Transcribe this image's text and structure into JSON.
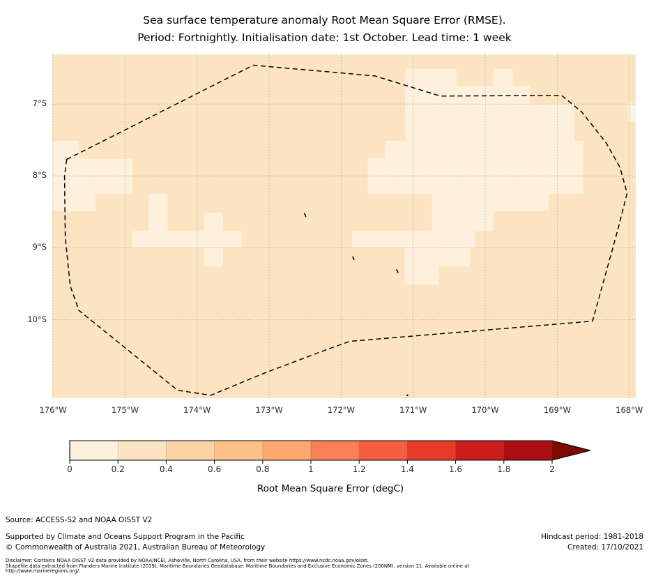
{
  "title": {
    "line1": "Sea surface temperature anomaly Root Mean Square Error (RMSE).",
    "line2": "Period: Fortnightly. Initialisation date: 1st October. Lead time: 1 week"
  },
  "chart_data": {
    "type": "heatmap",
    "subtype": "geographic-map",
    "grid": true,
    "lon_left_w": 176.01,
    "lon_right_w": 167.91,
    "lat_top_s": 6.31,
    "lat_bottom_s": 11.09,
    "x_axis": {
      "ticks": [
        {
          "value": 176,
          "label": "176°W"
        },
        {
          "value": 175,
          "label": "175°W"
        },
        {
          "value": 174,
          "label": "174°W"
        },
        {
          "value": 173,
          "label": "173°W"
        },
        {
          "value": 172,
          "label": "172°W"
        },
        {
          "value": 171,
          "label": "171°W"
        },
        {
          "value": 170,
          "label": "170°W"
        },
        {
          "value": 169,
          "label": "169°W"
        },
        {
          "value": 168,
          "label": "168°W"
        }
      ]
    },
    "y_axis": {
      "ticks": [
        {
          "value": 7,
          "label": "7°S"
        },
        {
          "value": 8,
          "label": "8°S"
        },
        {
          "value": 9,
          "label": "9°S"
        },
        {
          "value": 10,
          "label": "10°S"
        }
      ]
    },
    "background_color": "#fce4c3",
    "light_color": "#fdf1dd",
    "background_bin_degC": "0.2-0.4",
    "light_bin_degC": "0-0.2",
    "low_rmse_patches": [
      {
        "w": 176.03,
        "e": 175.64,
        "n": 7.51,
        "s": 7.76
      },
      {
        "w": 176.03,
        "e": 174.9,
        "n": 7.76,
        "s": 8.25
      },
      {
        "w": 176.03,
        "e": 175.41,
        "n": 8.25,
        "s": 8.49
      },
      {
        "w": 174.67,
        "e": 174.41,
        "n": 8.25,
        "s": 9.0
      },
      {
        "w": 174.9,
        "e": 173.38,
        "n": 8.77,
        "s": 9.0
      },
      {
        "w": 173.9,
        "e": 173.64,
        "n": 8.51,
        "s": 8.77
      },
      {
        "w": 173.9,
        "e": 173.64,
        "n": 9.0,
        "s": 9.26
      },
      {
        "w": 171.11,
        "e": 170.4,
        "n": 6.51,
        "s": 6.75
      },
      {
        "w": 169.89,
        "e": 169.62,
        "n": 6.51,
        "s": 6.75
      },
      {
        "w": 171.11,
        "e": 169.38,
        "n": 6.75,
        "s": 7.0
      },
      {
        "w": 171.11,
        "e": 168.76,
        "n": 7.0,
        "s": 7.51
      },
      {
        "w": 171.39,
        "e": 168.64,
        "n": 7.51,
        "s": 7.75
      },
      {
        "w": 171.63,
        "e": 168.64,
        "n": 7.75,
        "s": 8.25
      },
      {
        "w": 170.74,
        "e": 169.12,
        "n": 8.25,
        "s": 8.49
      },
      {
        "w": 170.74,
        "e": 169.89,
        "n": 8.49,
        "s": 8.77
      },
      {
        "w": 171.85,
        "e": 170.14,
        "n": 8.77,
        "s": 9.0
      },
      {
        "w": 171.12,
        "e": 170.21,
        "n": 9.0,
        "s": 9.26
      },
      {
        "w": 171.12,
        "e": 170.64,
        "n": 9.26,
        "s": 9.51
      },
      {
        "w": 168.02,
        "e": 167.91,
        "n": 6.98,
        "s": 7.25
      }
    ],
    "eez_boundary": [
      [
        175.81,
        7.77
      ],
      [
        173.22,
        6.46
      ],
      [
        171.53,
        6.61
      ],
      [
        170.62,
        6.89
      ],
      [
        168.94,
        6.88
      ],
      [
        168.66,
        7.11
      ],
      [
        168.32,
        7.54
      ],
      [
        168.13,
        7.88
      ],
      [
        168.03,
        8.24
      ],
      [
        168.16,
        8.75
      ],
      [
        168.51,
        10.02
      ],
      [
        171.88,
        10.3
      ],
      [
        172.24,
        10.43
      ],
      [
        173.06,
        10.74
      ],
      [
        173.81,
        11.05
      ],
      [
        174.27,
        10.98
      ],
      [
        175.64,
        9.87
      ],
      [
        175.76,
        9.53
      ],
      [
        175.83,
        8.85
      ],
      [
        175.84,
        8.0
      ]
    ],
    "islands": [
      {
        "lon_w": 172.49,
        "lat_s": 8.55,
        "kind": "mark"
      },
      {
        "lon_w": 171.82,
        "lat_s": 9.15,
        "kind": "mark"
      },
      {
        "lon_w": 171.21,
        "lat_s": 9.33,
        "kind": "mark"
      },
      {
        "lon_w": 171.08,
        "lat_s": 11.05,
        "kind": "dot"
      }
    ],
    "colorbar": {
      "label": "Root Mean Square Error (degC)",
      "ticks": [
        "0",
        "0.2",
        "0.4",
        "0.6",
        "0.8",
        "1",
        "1.2",
        "1.4",
        "1.6",
        "1.8",
        "2"
      ],
      "colors": [
        "#fdf1dd",
        "#fce4c3",
        "#fcd5a5",
        "#fcc189",
        "#fca86f",
        "#fb8057",
        "#f65e42",
        "#e73b28",
        "#cc1c1d",
        "#ab0f13"
      ],
      "over_color": "#7c0a02"
    }
  },
  "footer": {
    "source": "Source: ACCESS-S2 and NOAA OISST V2",
    "supported": "Supported by Climate and Oceans Support Program in the Pacific",
    "copyright": "© Commonwealth of Australia 2021, Australian Bureau of Meteorology",
    "hindcast": "Hindcast period: 1981-2018",
    "created": "Created: 17/10/2021",
    "disclaimer_lines": [
      "Disclaimer: Contains NOAA OISST V2 data provided by NOAA/NCEI, Asheville, North Carolina, USA, from their website https://www.ncdc.noaa.gov/oisst.",
      "Shapefile data extracted from Flanders Marine Institute (2019), Maritime Boundaries Geodatabase: Maritime Boundaries and Exclusive Economic Zones (200NM), version 11. Available online at",
      "http://www.marineregions.org/."
    ]
  }
}
